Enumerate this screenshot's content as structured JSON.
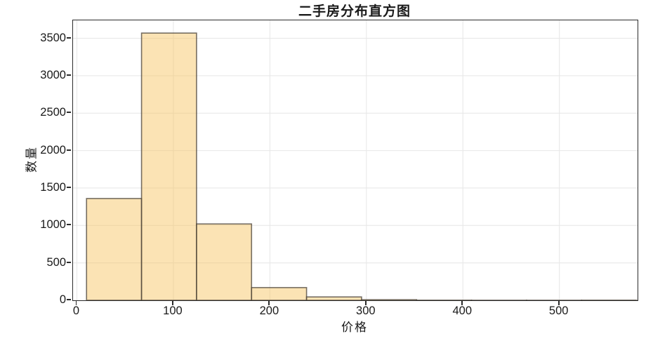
{
  "figure": {
    "title": "二手房分布直方图",
    "xlabel": "价格",
    "ylabel": "数量"
  },
  "chart_data": {
    "type": "bar",
    "subtype": "histogram",
    "title": "二手房分布直方图",
    "xlabel": "价格",
    "ylabel": "数量",
    "bin_edges": [
      10,
      67,
      124,
      181,
      238,
      295,
      352,
      409,
      466,
      523,
      580
    ],
    "counts": [
      1360,
      3570,
      1020,
      170,
      45,
      8,
      2,
      1,
      1,
      2
    ],
    "x_ticks": [
      0,
      100,
      200,
      300,
      400,
      500
    ],
    "y_ticks": [
      0,
      500,
      1000,
      1500,
      2000,
      2500,
      3000,
      3500
    ],
    "xlim": [
      -4,
      581
    ],
    "ylim": [
      0,
      3740
    ],
    "grid": true,
    "legend": "none",
    "colors": {
      "bar_fill": "#f6c45f",
      "bar_fill_opacity": 0.47,
      "bar_edge": "#4a4238",
      "bar_edge_opacity": 0.75,
      "grid_color": "#e8e8e8",
      "spine_color": "#2b2b2b",
      "text_color": "#1a1a1a",
      "background": "#ffffff"
    }
  }
}
